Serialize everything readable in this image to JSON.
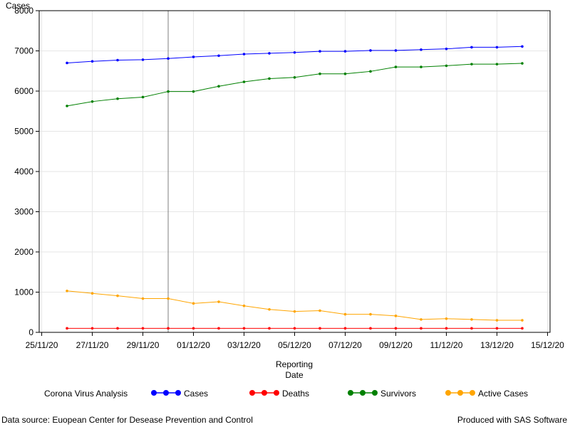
{
  "chart_data": {
    "type": "line",
    "ylabel": "Cases",
    "xlabel_lines": [
      "Reporting",
      "Date"
    ],
    "ylim": [
      0,
      8000
    ],
    "y_ticks": [
      0,
      1000,
      2000,
      3000,
      4000,
      5000,
      6000,
      7000,
      8000
    ],
    "x_ticks": [
      "25/11/20",
      "27/11/20",
      "29/11/20",
      "01/12/20",
      "03/12/20",
      "05/12/20",
      "07/12/20",
      "09/12/20",
      "11/12/20",
      "13/12/20",
      "15/12/20"
    ],
    "x_tick_day_index": [
      0,
      2,
      4,
      6,
      8,
      10,
      12,
      14,
      16,
      18,
      20
    ],
    "x_range_day_index": [
      -0.1,
      20.1
    ],
    "reference_line_day_index": 5,
    "grid": true,
    "x_day_index": [
      1,
      2,
      3,
      4,
      5,
      6,
      7,
      8,
      9,
      10,
      11,
      12,
      13,
      14,
      15,
      16,
      17,
      18,
      19
    ],
    "x": [
      "26/11/20",
      "27/11/20",
      "28/11/20",
      "29/11/20",
      "30/11/20",
      "01/12/20",
      "02/12/20",
      "03/12/20",
      "04/12/20",
      "05/12/20",
      "06/12/20",
      "07/12/20",
      "08/12/20",
      "09/12/20",
      "10/12/20",
      "11/12/20",
      "12/12/20",
      "13/12/20",
      "14/12/20"
    ],
    "series": [
      {
        "name": "Cases",
        "color": "#0000ff",
        "values": [
          6700,
          6740,
          6770,
          6780,
          6810,
          6850,
          6880,
          6920,
          6940,
          6960,
          6990,
          6990,
          7010,
          7010,
          7030,
          7050,
          7090,
          7090,
          7110
        ]
      },
      {
        "name": "Deaths",
        "color": "#ff0000",
        "values": [
          100,
          100,
          100,
          100,
          100,
          100,
          100,
          100,
          100,
          100,
          100,
          100,
          100,
          100,
          100,
          100,
          100,
          100,
          100
        ]
      },
      {
        "name": "Survivors",
        "color": "#008000",
        "values": [
          5630,
          5740,
          5810,
          5850,
          5990,
          5990,
          6120,
          6230,
          6310,
          6340,
          6430,
          6430,
          6490,
          6600,
          6600,
          6630,
          6670,
          6670,
          6690
        ]
      },
      {
        "name": "Active Cases",
        "color": "#ffa500",
        "values": [
          1030,
          970,
          910,
          840,
          840,
          720,
          760,
          660,
          570,
          520,
          540,
          450,
          450,
          410,
          320,
          340,
          320,
          300,
          300
        ]
      }
    ],
    "legend_title": "Corona Virus Analysis",
    "legend_position": "bottom"
  },
  "footer": {
    "left": "Data source: Euopean Center for Desease Prevention and Control",
    "right": "Produced with SAS Software"
  }
}
